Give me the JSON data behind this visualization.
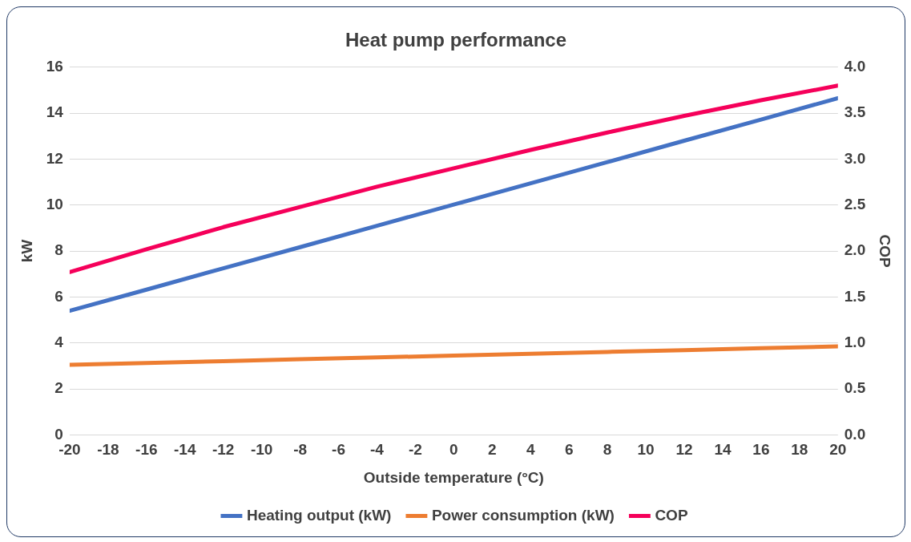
{
  "chart_data": {
    "type": "line",
    "title": "Heat pump performance",
    "xlabel": "Outside temperature (°C)",
    "ylabel": "kW",
    "y2label": "COP",
    "xlim": [
      -20,
      20
    ],
    "xticks": [
      -20,
      -18,
      -16,
      -14,
      -12,
      -10,
      -8,
      -6,
      -4,
      -2,
      0,
      2,
      4,
      6,
      8,
      10,
      12,
      14,
      16,
      18,
      20
    ],
    "ylim": [
      0,
      16
    ],
    "yticks": [
      0,
      2,
      4,
      6,
      8,
      10,
      12,
      14,
      16
    ],
    "y2lim": [
      0,
      4
    ],
    "y2ticks": [
      {
        "value": 0,
        "label": "0.0"
      },
      {
        "value": 0.5,
        "label": "0.5"
      },
      {
        "value": 1,
        "label": "1.0"
      },
      {
        "value": 1.5,
        "label": "1.5"
      },
      {
        "value": 2,
        "label": "2.0"
      },
      {
        "value": 2.5,
        "label": "2.5"
      },
      {
        "value": 3,
        "label": "3.0"
      },
      {
        "value": 3.5,
        "label": "3.5"
      },
      {
        "value": 4,
        "label": "4.0"
      }
    ],
    "x": [
      -20,
      -16,
      -12,
      -8,
      -4,
      0,
      4,
      8,
      12,
      16,
      20
    ],
    "series": [
      {
        "name": "Heating output (kW)",
        "color": "#4472c4",
        "values": [
          5.4,
          6.32,
          7.25,
          8.17,
          9.1,
          10.02,
          10.95,
          11.87,
          12.8,
          13.72,
          14.65
        ]
      },
      {
        "name": "Power consumption (kW)",
        "color": "#ed7d31",
        "values": [
          3.05,
          3.13,
          3.21,
          3.29,
          3.37,
          3.45,
          3.53,
          3.61,
          3.69,
          3.77,
          3.85
        ]
      },
      {
        "name": "COP",
        "color": "#f5005a",
        "axis": "y2",
        "values": [
          1.77,
          2.02,
          2.26,
          2.48,
          2.7,
          2.9,
          3.1,
          3.29,
          3.47,
          3.64,
          3.8
        ]
      }
    ],
    "grid": "y",
    "legend": "bottom",
    "marker": "none",
    "line_style": "solid"
  }
}
